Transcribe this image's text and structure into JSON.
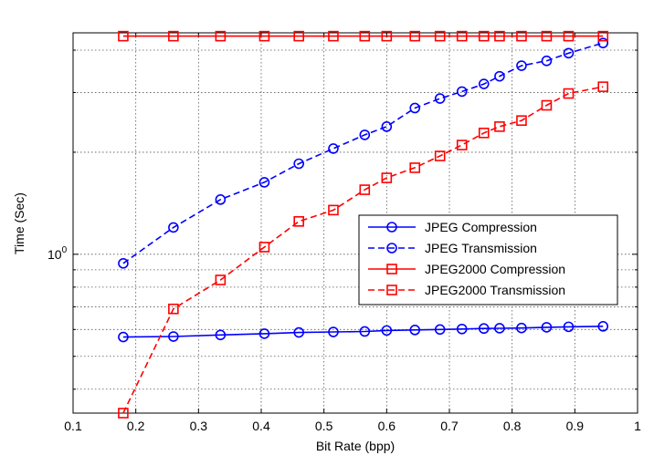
{
  "chart_data": {
    "type": "line",
    "title": "",
    "xlabel": "Bit Rate (bpp)",
    "ylabel": "Time (Sec)",
    "xlim": [
      0.1,
      1.0
    ],
    "ylim": [
      0.34,
      4.5
    ],
    "yscale": "log",
    "grid": true,
    "legend_position": "center-right",
    "x_ticks": [
      "0.1",
      "0.2",
      "0.3",
      "0.4",
      "0.5",
      "0.6",
      "0.7",
      "0.8",
      "0.9",
      "1"
    ],
    "y_tick_label": {
      "base": "10",
      "exp": "0"
    },
    "x": [
      0.18,
      0.26,
      0.335,
      0.405,
      0.46,
      0.515,
      0.565,
      0.6,
      0.645,
      0.685,
      0.72,
      0.755,
      0.78,
      0.815,
      0.855,
      0.89,
      0.945
    ],
    "series": [
      {
        "name": "JPEG Compression",
        "color": "#0000ff",
        "dashed": false,
        "marker": "circle",
        "values": [
          0.57,
          0.572,
          0.578,
          0.583,
          0.588,
          0.59,
          0.592,
          0.596,
          0.598,
          0.6,
          0.602,
          0.604,
          0.605,
          0.606,
          0.609,
          0.611,
          0.613
        ]
      },
      {
        "name": "JPEG Transmission",
        "color": "#0000ff",
        "dashed": true,
        "marker": "circle",
        "values": [
          0.94,
          1.2,
          1.45,
          1.63,
          1.85,
          2.05,
          2.25,
          2.38,
          2.7,
          2.88,
          3.02,
          3.18,
          3.35,
          3.6,
          3.72,
          3.92,
          4.2
        ]
      },
      {
        "name": "JPEG2000 Compression",
        "color": "#ff0000",
        "dashed": false,
        "marker": "square",
        "values": [
          4.4,
          4.4,
          4.4,
          4.4,
          4.4,
          4.4,
          4.4,
          4.4,
          4.4,
          4.4,
          4.4,
          4.4,
          4.4,
          4.4,
          4.4,
          4.4,
          4.4
        ]
      },
      {
        "name": "JPEG2000 Transmission",
        "color": "#ff0000",
        "dashed": true,
        "marker": "square",
        "values": [
          0.34,
          0.69,
          0.84,
          1.05,
          1.25,
          1.35,
          1.55,
          1.68,
          1.8,
          1.95,
          2.1,
          2.28,
          2.38,
          2.48,
          2.75,
          2.98,
          3.12
        ]
      }
    ]
  }
}
